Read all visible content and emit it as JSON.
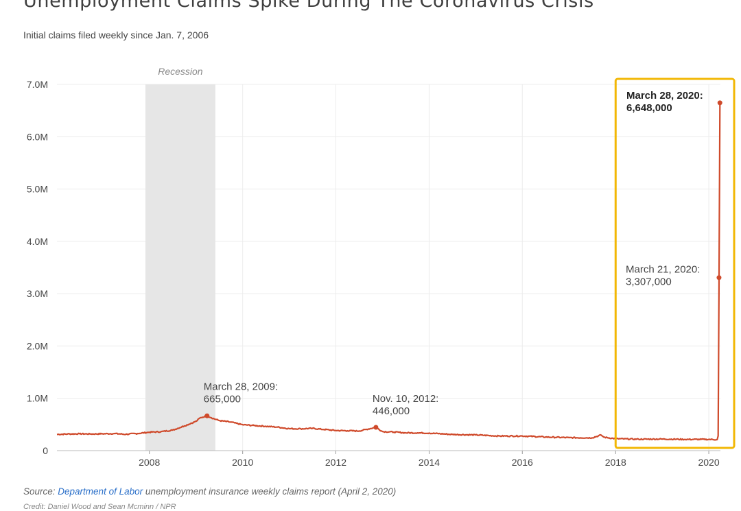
{
  "header": {
    "title": "Unemployment Claims Spike During The Coronavirus Crisis",
    "subtitle": "Initial claims filed weekly since Jan. 7, 2006"
  },
  "footer": {
    "source_prefix": "Source: ",
    "source_link": "Department of Labor",
    "source_rest": " unemployment insurance weekly claims report (April 2, 2020)",
    "credit": "Credit: Daniel Wood and Sean Mcminn / NPR"
  },
  "colors": {
    "line": "#cf4a2b",
    "recession": "#e6e6e6",
    "highlight_box": "#f2b705",
    "grid": "#ececec"
  },
  "chart_data": {
    "type": "line",
    "title": "Unemployment Claims Spike During The Coronavirus Crisis",
    "subtitle": "Initial claims filed weekly since Jan. 7, 2006",
    "xlim": [
      "2006-01-07",
      "2020-04-01"
    ],
    "ylim": [
      0,
      7000000
    ],
    "y_ticks": [
      0,
      1000000,
      2000000,
      3000000,
      4000000,
      5000000,
      6000000,
      7000000
    ],
    "y_tick_labels": [
      "0",
      "1.0M",
      "2.0M",
      "3.0M",
      "4.0M",
      "5.0M",
      "6.0M",
      "7.0M"
    ],
    "x_ticks": [
      "2008-01-01",
      "2010-01-01",
      "2012-01-01",
      "2014-01-01",
      "2016-01-01",
      "2018-01-01",
      "2020-01-01"
    ],
    "x_tick_labels": [
      "2008",
      "2010",
      "2012",
      "2014",
      "2016",
      "2018",
      "2020"
    ],
    "grid": true,
    "recession": {
      "label": "Recession",
      "start": "2007-12-01",
      "end": "2009-06-01"
    },
    "highlight_box": {
      "start": "2018-01-01",
      "end": "2020-04-01"
    },
    "series": [
      {
        "x": [
          "2006-01-07",
          "2006-04-01",
          "2006-07-01",
          "2006-10-01",
          "2007-01-01",
          "2007-04-01",
          "2007-07-01",
          "2007-10-01",
          "2008-01-01",
          "2008-04-01",
          "2008-07-01",
          "2008-10-01",
          "2009-01-03",
          "2009-02-01",
          "2009-03-28",
          "2009-05-01",
          "2009-07-01",
          "2009-10-01",
          "2010-01-01",
          "2010-04-01",
          "2010-07-01",
          "2010-10-01",
          "2011-01-01",
          "2011-04-01",
          "2011-07-01",
          "2011-10-01",
          "2012-01-01",
          "2012-04-01",
          "2012-07-01",
          "2012-11-10",
          "2013-01-01",
          "2013-04-01",
          "2013-07-01",
          "2013-10-01",
          "2014-01-01",
          "2014-07-01",
          "2015-01-01",
          "2015-07-01",
          "2016-01-01",
          "2016-07-01",
          "2017-01-01",
          "2017-07-01",
          "2017-09-09",
          "2017-09-30",
          "2018-01-01",
          "2018-07-01",
          "2019-01-01",
          "2019-07-01",
          "2020-01-01",
          "2020-03-07",
          "2020-03-14",
          "2020-03-21",
          "2020-03-28"
        ],
        "values": [
          310000,
          318000,
          322000,
          318000,
          322000,
          326000,
          312000,
          328000,
          352000,
          362000,
          392000,
          472000,
          562000,
          625000,
          665000,
          628000,
          575000,
          545000,
          495000,
          480000,
          465000,
          450000,
          420000,
          418000,
          425000,
          405000,
          385000,
          380000,
          375000,
          446000,
          365000,
          355000,
          340000,
          340000,
          335000,
          310000,
          300000,
          280000,
          280000,
          260000,
          248000,
          245000,
          298000,
          258000,
          228000,
          218000,
          222000,
          215000,
          215000,
          211000,
          282000,
          3307000,
          6648000
        ]
      }
    ],
    "annotations": [
      {
        "date": "2009-03-28",
        "label_line1": "March 28, 2009:",
        "label_line2": "665,000",
        "value": 665000
      },
      {
        "date": "2012-11-10",
        "label_line1": "Nov. 10, 2012:",
        "label_line2": "446,000",
        "value": 446000
      },
      {
        "date": "2020-03-21",
        "label_line1": "March 21, 2020:",
        "label_line2": "3,307,000",
        "value": 3307000
      },
      {
        "date": "2020-03-28",
        "label_line1": "March 28, 2020:",
        "label_line2": "6,648,000",
        "value": 6648000
      }
    ]
  }
}
